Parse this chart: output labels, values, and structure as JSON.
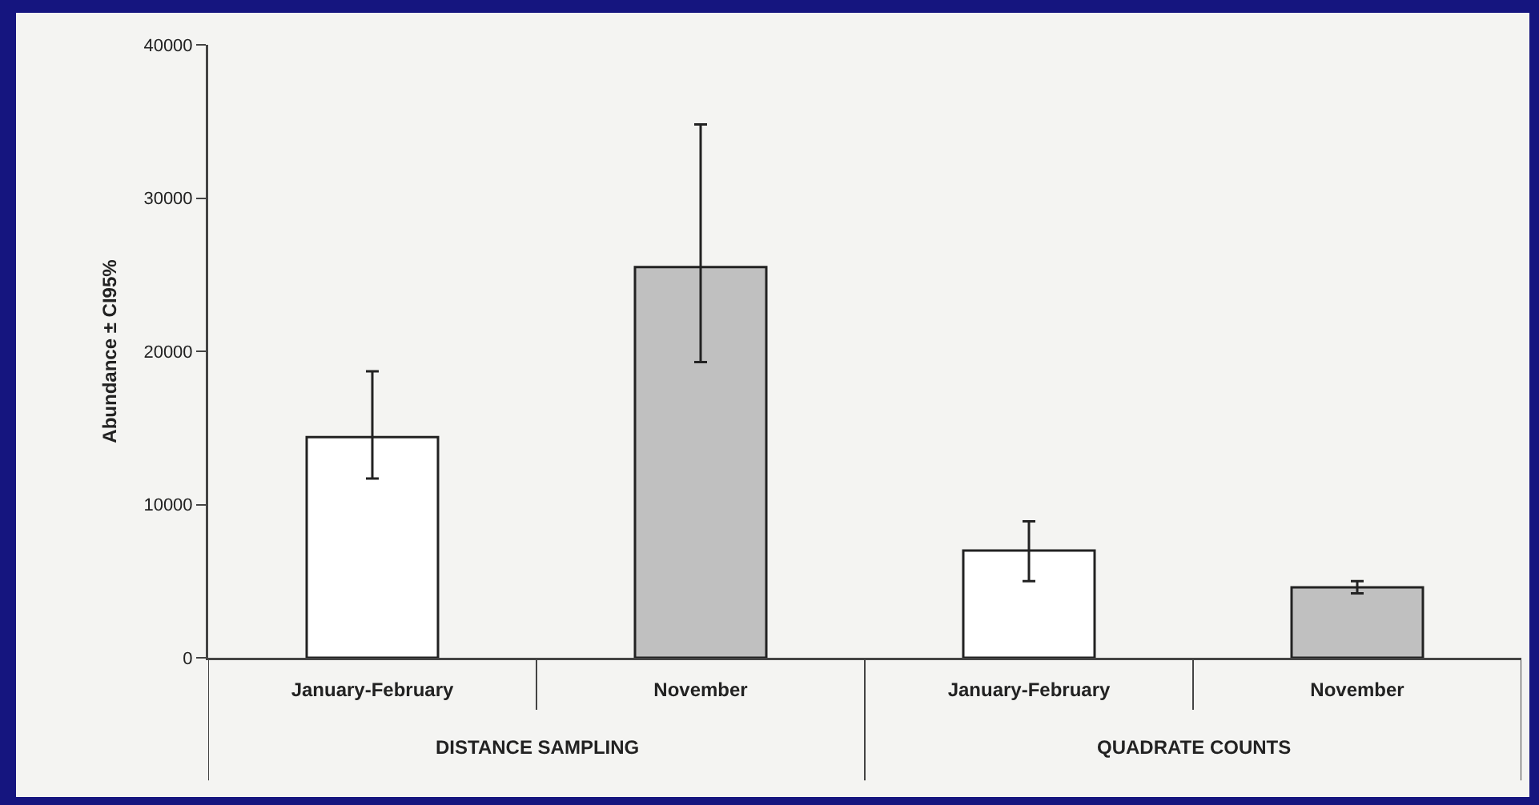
{
  "chart_data": {
    "type": "bar",
    "ylabel": "Abundance ± CI95%",
    "categories": [
      "January-February",
      "November",
      "January-February",
      "November"
    ],
    "values": [
      14400,
      25500,
      7000,
      4600
    ],
    "colors": [
      "#ffffff",
      "#c0c0c0",
      "#ffffff",
      "#c0c0c0"
    ],
    "errors": [
      [
        11700,
        18700
      ],
      [
        19300,
        34800
      ],
      [
        5000,
        8900
      ],
      [
        4200,
        5000
      ]
    ],
    "ylim": [
      0,
      40000
    ],
    "yticks": [
      0,
      10000,
      20000,
      30000,
      40000
    ],
    "annotations": [
      "DISTANCE SAMPLING",
      "QUADRATE COUNTS"
    ],
    "grid": false
  }
}
